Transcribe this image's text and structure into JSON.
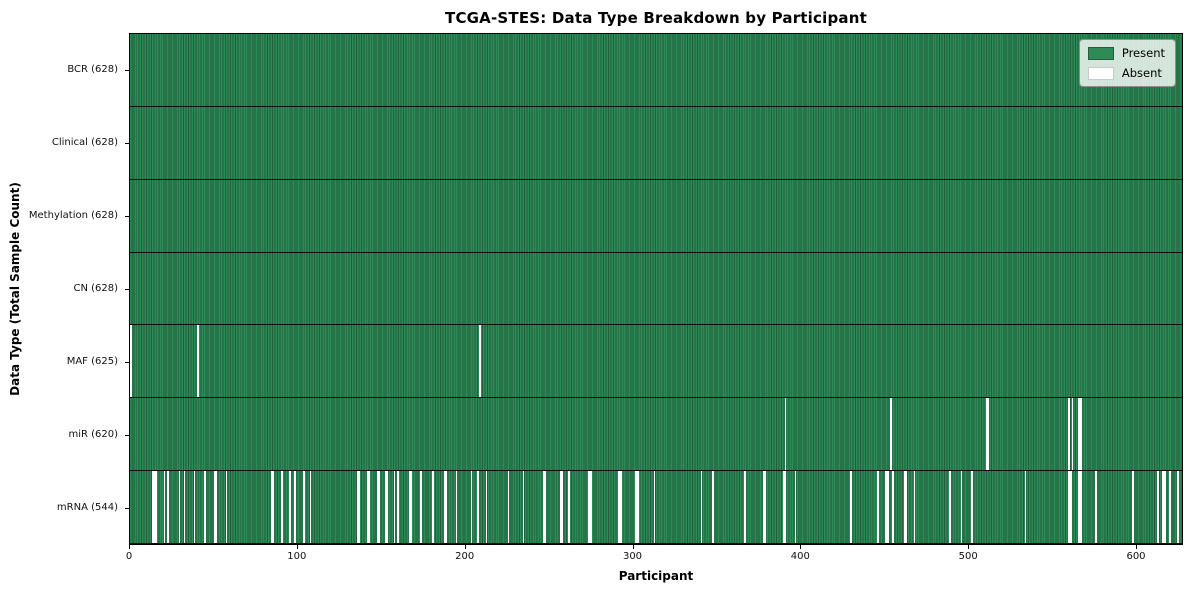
{
  "chart_data": {
    "type": "heatmap",
    "title": "TCGA-STES: Data Type Breakdown by Participant",
    "xlabel": "Participant",
    "ylabel": "Data Type (Total Sample Count)",
    "xlim": [
      0,
      628
    ],
    "x_ticks": [
      0,
      100,
      200,
      300,
      400,
      500,
      600
    ],
    "n_participants": 628,
    "grid": false,
    "legend_position": "upper right",
    "legend": [
      {
        "label": "Present",
        "color": "#2e8b57"
      },
      {
        "label": "Absent",
        "color": "#ffffff"
      }
    ],
    "rows": [
      {
        "label": "BCR (628)",
        "data_type": "BCR",
        "present_count": 628,
        "total": 628,
        "absent_participants": []
      },
      {
        "label": "Clinical (628)",
        "data_type": "Clinical",
        "present_count": 628,
        "total": 628,
        "absent_participants": []
      },
      {
        "label": "Methylation (628)",
        "data_type": "Methylation",
        "present_count": 628,
        "total": 628,
        "absent_participants": []
      },
      {
        "label": "CN (628)",
        "data_type": "CN",
        "present_count": 628,
        "total": 628,
        "absent_participants": []
      },
      {
        "label": "MAF (625)",
        "data_type": "MAF",
        "present_count": 625,
        "total": 628,
        "absent_participants": [
          0,
          40,
          208
        ]
      },
      {
        "label": "miR (620)",
        "data_type": "miR",
        "present_count": 620,
        "total": 628,
        "absent_participants": [
          390,
          453,
          510,
          511,
          559,
          561,
          565,
          566
        ]
      },
      {
        "label": "mRNA (544)",
        "data_type": "mRNA",
        "present_count": 544,
        "total": 628,
        "absent_participants": [
          13,
          14,
          15,
          20,
          22,
          29,
          32,
          38,
          44,
          50,
          51,
          57,
          84,
          85,
          90,
          95,
          98,
          103,
          107,
          135,
          136,
          141,
          142,
          147,
          148,
          152,
          153,
          157,
          159,
          166,
          167,
          173,
          180,
          187,
          188,
          194,
          203,
          207,
          212,
          225,
          234,
          246,
          247,
          256,
          257,
          261,
          273,
          274,
          291,
          292,
          301,
          302,
          312,
          340,
          347,
          366,
          377,
          378,
          389,
          390,
          396,
          429,
          445,
          450,
          451,
          454,
          461,
          462,
          467,
          488,
          495,
          501,
          533,
          559,
          560,
          565,
          566,
          575,
          597,
          612,
          615,
          616,
          619,
          624
        ]
      }
    ],
    "colors": {
      "present": "#2e8b57",
      "present_edge": "#1f5f3c",
      "absent": "#ffffff",
      "axis": "#000000"
    }
  }
}
